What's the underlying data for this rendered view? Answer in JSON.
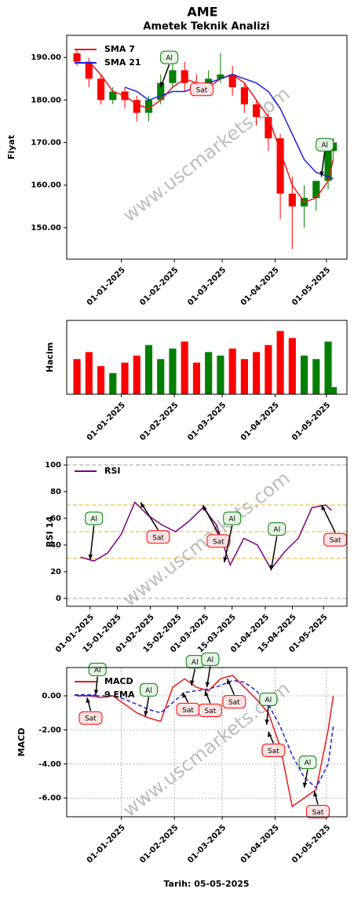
{
  "title": "AME",
  "xlabel": "Tarih: 05-05-2025",
  "watermark": "www.uscmarkets.com",
  "chart_data": [
    {
      "type": "candlestick",
      "title": "Ametek Teknik Analizi",
      "ylabel": "Fiyat",
      "x": [
        "06-12-2024",
        "13-12-2024",
        "20-12-2024",
        "27-12-2024",
        "03-01-2025",
        "10-01-2025",
        "17-01-2025",
        "24-01-2025",
        "31-01-2025",
        "07-02-2025",
        "14-02-2025",
        "21-02-2025",
        "28-02-2025",
        "07-03-2025",
        "14-03-2025",
        "21-03-2025",
        "28-03-2025",
        "04-04-2025",
        "11-04-2025",
        "18-04-2025",
        "25-04-2025",
        "02-05-2025",
        "05-05-2025"
      ],
      "open": [
        191,
        189,
        185,
        180,
        182,
        180,
        177,
        180,
        184,
        187,
        184,
        183,
        185,
        186,
        183,
        179,
        176,
        171,
        158,
        155,
        157,
        161,
        168
      ],
      "close": [
        189,
        185,
        180,
        182,
        180,
        177,
        180,
        184,
        187,
        184,
        183,
        185,
        186,
        183,
        179,
        176,
        171,
        158,
        155,
        157,
        161,
        168,
        170
      ],
      "high": [
        192,
        190,
        186,
        183,
        183,
        181,
        181,
        186,
        190,
        189,
        186,
        187,
        191,
        188,
        184,
        180,
        177,
        172,
        162,
        160,
        161,
        169,
        171
      ],
      "low": [
        188,
        183,
        179,
        179,
        178,
        175,
        175,
        179,
        183,
        182,
        181,
        182,
        184,
        181,
        177,
        174,
        168,
        152,
        145,
        150,
        154,
        159,
        166
      ],
      "up_color": "green",
      "down_color": "red",
      "series": [
        {
          "name": "SMA 7",
          "color": "#e8191c",
          "values": [
            null,
            189,
            186,
            182,
            181,
            179,
            178,
            180,
            183,
            185,
            184,
            183,
            185,
            186,
            184,
            180,
            176,
            168,
            160,
            156,
            157,
            161,
            166
          ]
        },
        {
          "name": "SMA 21",
          "color": "#1f1fe0",
          "values": [
            null,
            null,
            null,
            null,
            183,
            182,
            180,
            181,
            182,
            182,
            183,
            184,
            185,
            186,
            185,
            184,
            182,
            178,
            172,
            166,
            163,
            162,
            161.5
          ]
        }
      ],
      "xlim": [
        "30-11-2024",
        "13-05-2025"
      ],
      "xticks": [
        "01-01-2025",
        "01-02-2025",
        "01-03-2025",
        "01-04-2025",
        "01-05-2025"
      ],
      "ylim": [
        142.6,
        195.2
      ],
      "yticks": [
        {
          "value": 150,
          "label": "150.00"
        },
        {
          "value": 160,
          "label": "160.00"
        },
        {
          "value": 170,
          "label": "170.00"
        },
        {
          "value": 180,
          "label": "180.00"
        },
        {
          "value": 190,
          "label": "190.00"
        }
      ],
      "legend": "upper left",
      "annotations": [
        {
          "text": "Al",
          "x": "29-01-2025",
          "y": 190,
          "target_x": "24-01-2025",
          "target_y": 183,
          "color": "green"
        },
        {
          "text": "Sat",
          "x": "17-02-2025",
          "y": 182.5,
          "color": "red"
        },
        {
          "text": "Al",
          "x": "30-04-2025",
          "y": 169.5,
          "target_x": "28-04-2025",
          "target_y": 162,
          "color": "green"
        }
      ]
    },
    {
      "type": "bar",
      "ylabel": "Hacim",
      "x": [
        "06-12-2024",
        "13-12-2024",
        "20-12-2024",
        "27-12-2024",
        "03-01-2025",
        "10-01-2025",
        "17-01-2025",
        "24-01-2025",
        "31-01-2025",
        "07-02-2025",
        "14-02-2025",
        "21-02-2025",
        "28-02-2025",
        "07-03-2025",
        "14-03-2025",
        "21-03-2025",
        "28-03-2025",
        "04-04-2025",
        "11-04-2025",
        "18-04-2025",
        "25-04-2025",
        "02-05-2025",
        "05-05-2025"
      ],
      "values": [
        1.0,
        1.2,
        0.8,
        0.6,
        0.9,
        1.1,
        1.4,
        1.0,
        1.3,
        1.5,
        0.9,
        1.2,
        1.1,
        1.3,
        1.0,
        1.2,
        1.4,
        1.8,
        1.6,
        1.1,
        1.0,
        1.5,
        0.2
      ],
      "colors": [
        "red",
        "red",
        "red",
        "green",
        "red",
        "red",
        "green",
        "green",
        "green",
        "red",
        "red",
        "green",
        "green",
        "red",
        "red",
        "red",
        "red",
        "red",
        "red",
        "green",
        "green",
        "green",
        "green"
      ],
      "xlim": [
        "30-11-2024",
        "13-05-2025"
      ],
      "xticks": [
        "01-01-2025",
        "01-02-2025",
        "01-03-2025",
        "01-04-2025",
        "01-05-2025"
      ],
      "ylim": [
        0,
        2.1
      ]
    },
    {
      "type": "line",
      "ylabel": "RSI 14",
      "x": [
        "27-12-2024",
        "03-01-2025",
        "10-01-2025",
        "17-01-2025",
        "24-01-2025",
        "31-01-2025",
        "07-02-2025",
        "14-02-2025",
        "21-02-2025",
        "28-02-2025",
        "07-03-2025",
        "14-03-2025",
        "21-03-2025",
        "28-03-2025",
        "04-04-2025",
        "11-04-2025",
        "18-04-2025",
        "25-04-2025",
        "02-05-2025",
        "05-05-2025"
      ],
      "series": [
        {
          "name": "RSI",
          "color": "#800080",
          "values": [
            31,
            28,
            34,
            48,
            72,
            62,
            55,
            50,
            58,
            68,
            55,
            25,
            45,
            40,
            22,
            35,
            45,
            68,
            70,
            66
          ]
        }
      ],
      "xlim": [
        "20-12-2024",
        "13-05-2025"
      ],
      "xticks": [
        "01-01-2025",
        "15-01-2025",
        "01-02-2025",
        "15-02-2025",
        "01-03-2025",
        "15-03-2025",
        "01-04-2025",
        "15-04-2025",
        "01-05-2025"
      ],
      "ylim": [
        -5.9,
        105.9
      ],
      "yticks": [
        0,
        20,
        40,
        60,
        80,
        100
      ],
      "reference_lines": [
        {
          "value": 0,
          "color": "#b0b0b0"
        },
        {
          "value": 30,
          "color": "#f5c14c"
        },
        {
          "value": 50,
          "color": "#f5c14c"
        },
        {
          "value": 70,
          "color": "#f5c14c"
        },
        {
          "value": 100,
          "color": "#b0b0b0"
        }
      ],
      "legend": "upper left",
      "annotations": [
        {
          "text": "Al",
          "x": "03-01-2025",
          "y": 60,
          "target_x": "01-01-2025",
          "target_y": 29,
          "color": "green"
        },
        {
          "text": "Sat",
          "x": "05-02-2025",
          "y": 46,
          "target_x": "27-01-2025",
          "target_y": 72,
          "color": "red"
        },
        {
          "text": "Sat",
          "x": "08-03-2025",
          "y": 43,
          "target_x": "28-02-2025",
          "target_y": 70,
          "color": "red"
        },
        {
          "text": "Al",
          "x": "15-03-2025",
          "y": 60,
          "target_x": "11-03-2025",
          "target_y": 27,
          "color": "green"
        },
        {
          "text": "Al",
          "x": "07-04-2025",
          "y": 52,
          "target_x": "04-04-2025",
          "target_y": 21,
          "color": "green"
        },
        {
          "text": "Sat",
          "x": "07-05-2025",
          "y": 44,
          "target_x": "30-04-2025",
          "target_y": 70,
          "color": "red"
        }
      ]
    },
    {
      "type": "line",
      "ylabel": "MACD",
      "x": [
        "06-12-2024",
        "13-12-2024",
        "20-12-2024",
        "27-12-2024",
        "03-01-2025",
        "10-01-2025",
        "17-01-2025",
        "24-01-2025",
        "31-01-2025",
        "07-02-2025",
        "14-02-2025",
        "21-02-2025",
        "28-02-2025",
        "07-03-2025",
        "14-03-2025",
        "21-03-2025",
        "28-03-2025",
        "04-04-2025",
        "11-04-2025",
        "18-04-2025",
        "25-04-2025",
        "02-05-2025",
        "05-05-2025"
      ],
      "series": [
        {
          "name": "MACD",
          "color": "#e8191c",
          "values": [
            0,
            0,
            -0.1,
            0,
            -0.5,
            -1,
            -1.3,
            -1.5,
            0.5,
            1,
            0.5,
            0.3,
            1,
            1.2,
            0.5,
            -0.2,
            -1,
            -3,
            -6.5,
            -6,
            -5.5,
            -2,
            0
          ]
        },
        {
          "name": "9 EMA",
          "color": "#1f1fe0",
          "dashed": true,
          "values": [
            0,
            0,
            0,
            0,
            -0.2,
            -0.5,
            -0.8,
            -1,
            -0.4,
            0.2,
            0.3,
            0.4,
            0.6,
            0.9,
            0.8,
            0.3,
            -0.5,
            -1.8,
            -3.5,
            -4.8,
            -5.4,
            -4,
            -1.8
          ]
        }
      ],
      "xlim": [
        "30-11-2024",
        "13-05-2025"
      ],
      "xticks": [
        "01-01-2025",
        "01-02-2025",
        "01-03-2025",
        "01-04-2025",
        "01-05-2025"
      ],
      "ylim": [
        -7.1,
        1.66
      ],
      "yticks": [
        {
          "value": -6,
          "label": "-6.00"
        },
        {
          "value": -4,
          "label": "-4.00"
        },
        {
          "value": -2,
          "label": "-2.00"
        },
        {
          "value": 0,
          "label": "0.00"
        }
      ],
      "grid": true,
      "legend": "upper left",
      "annotations": [
        {
          "text": "Al",
          "x": "18-12-2024",
          "y": 1.55,
          "target_x": "17-12-2024",
          "target_y": 0.05,
          "color": "green"
        },
        {
          "text": "Sat",
          "x": "14-12-2024",
          "y": -1.3,
          "target_x": "12-12-2024",
          "target_y": -0.1,
          "color": "red"
        },
        {
          "text": "Al",
          "x": "17-01-2025",
          "y": 0.35,
          "target_x": "15-01-2025",
          "target_y": -1.2,
          "color": "green"
        },
        {
          "text": "Sat",
          "x": "09-02-2025",
          "y": -0.8,
          "target_x": "06-02-2025",
          "target_y": 0.2,
          "color": "red"
        },
        {
          "text": "Al",
          "x": "13-02-2025",
          "y": 2.0,
          "target_x": "11-02-2025",
          "target_y": 0.6,
          "color": "green"
        },
        {
          "text": "Sat",
          "x": "22-02-2025",
          "y": -0.85,
          "target_x": "19-02-2025",
          "target_y": 0.3,
          "color": "red"
        },
        {
          "text": "Al",
          "x": "22-02-2025",
          "y": 2.15,
          "target_x": "20-02-2025",
          "target_y": 0.5,
          "color": "green"
        },
        {
          "text": "Sat",
          "x": "08-03-2025",
          "y": -0.35,
          "target_x": "04-03-2025",
          "target_y": 1.0,
          "color": "red"
        },
        {
          "text": "Al",
          "x": "28-03-2025",
          "y": -0.2,
          "target_x": "27-03-2025",
          "target_y": -1.7,
          "color": "green"
        },
        {
          "text": "Sat",
          "x": "31-03-2025",
          "y": -3.2,
          "target_x": "28-03-2025",
          "target_y": -2.1,
          "color": "red"
        },
        {
          "text": "Al",
          "x": "20-04-2025",
          "y": -3.9,
          "target_x": "18-04-2025",
          "target_y": -5.4,
          "color": "green"
        },
        {
          "text": "Sat",
          "x": "26-04-2025",
          "y": -6.8,
          "target_x": "24-04-2025",
          "target_y": -5.6,
          "color": "red"
        }
      ]
    }
  ]
}
